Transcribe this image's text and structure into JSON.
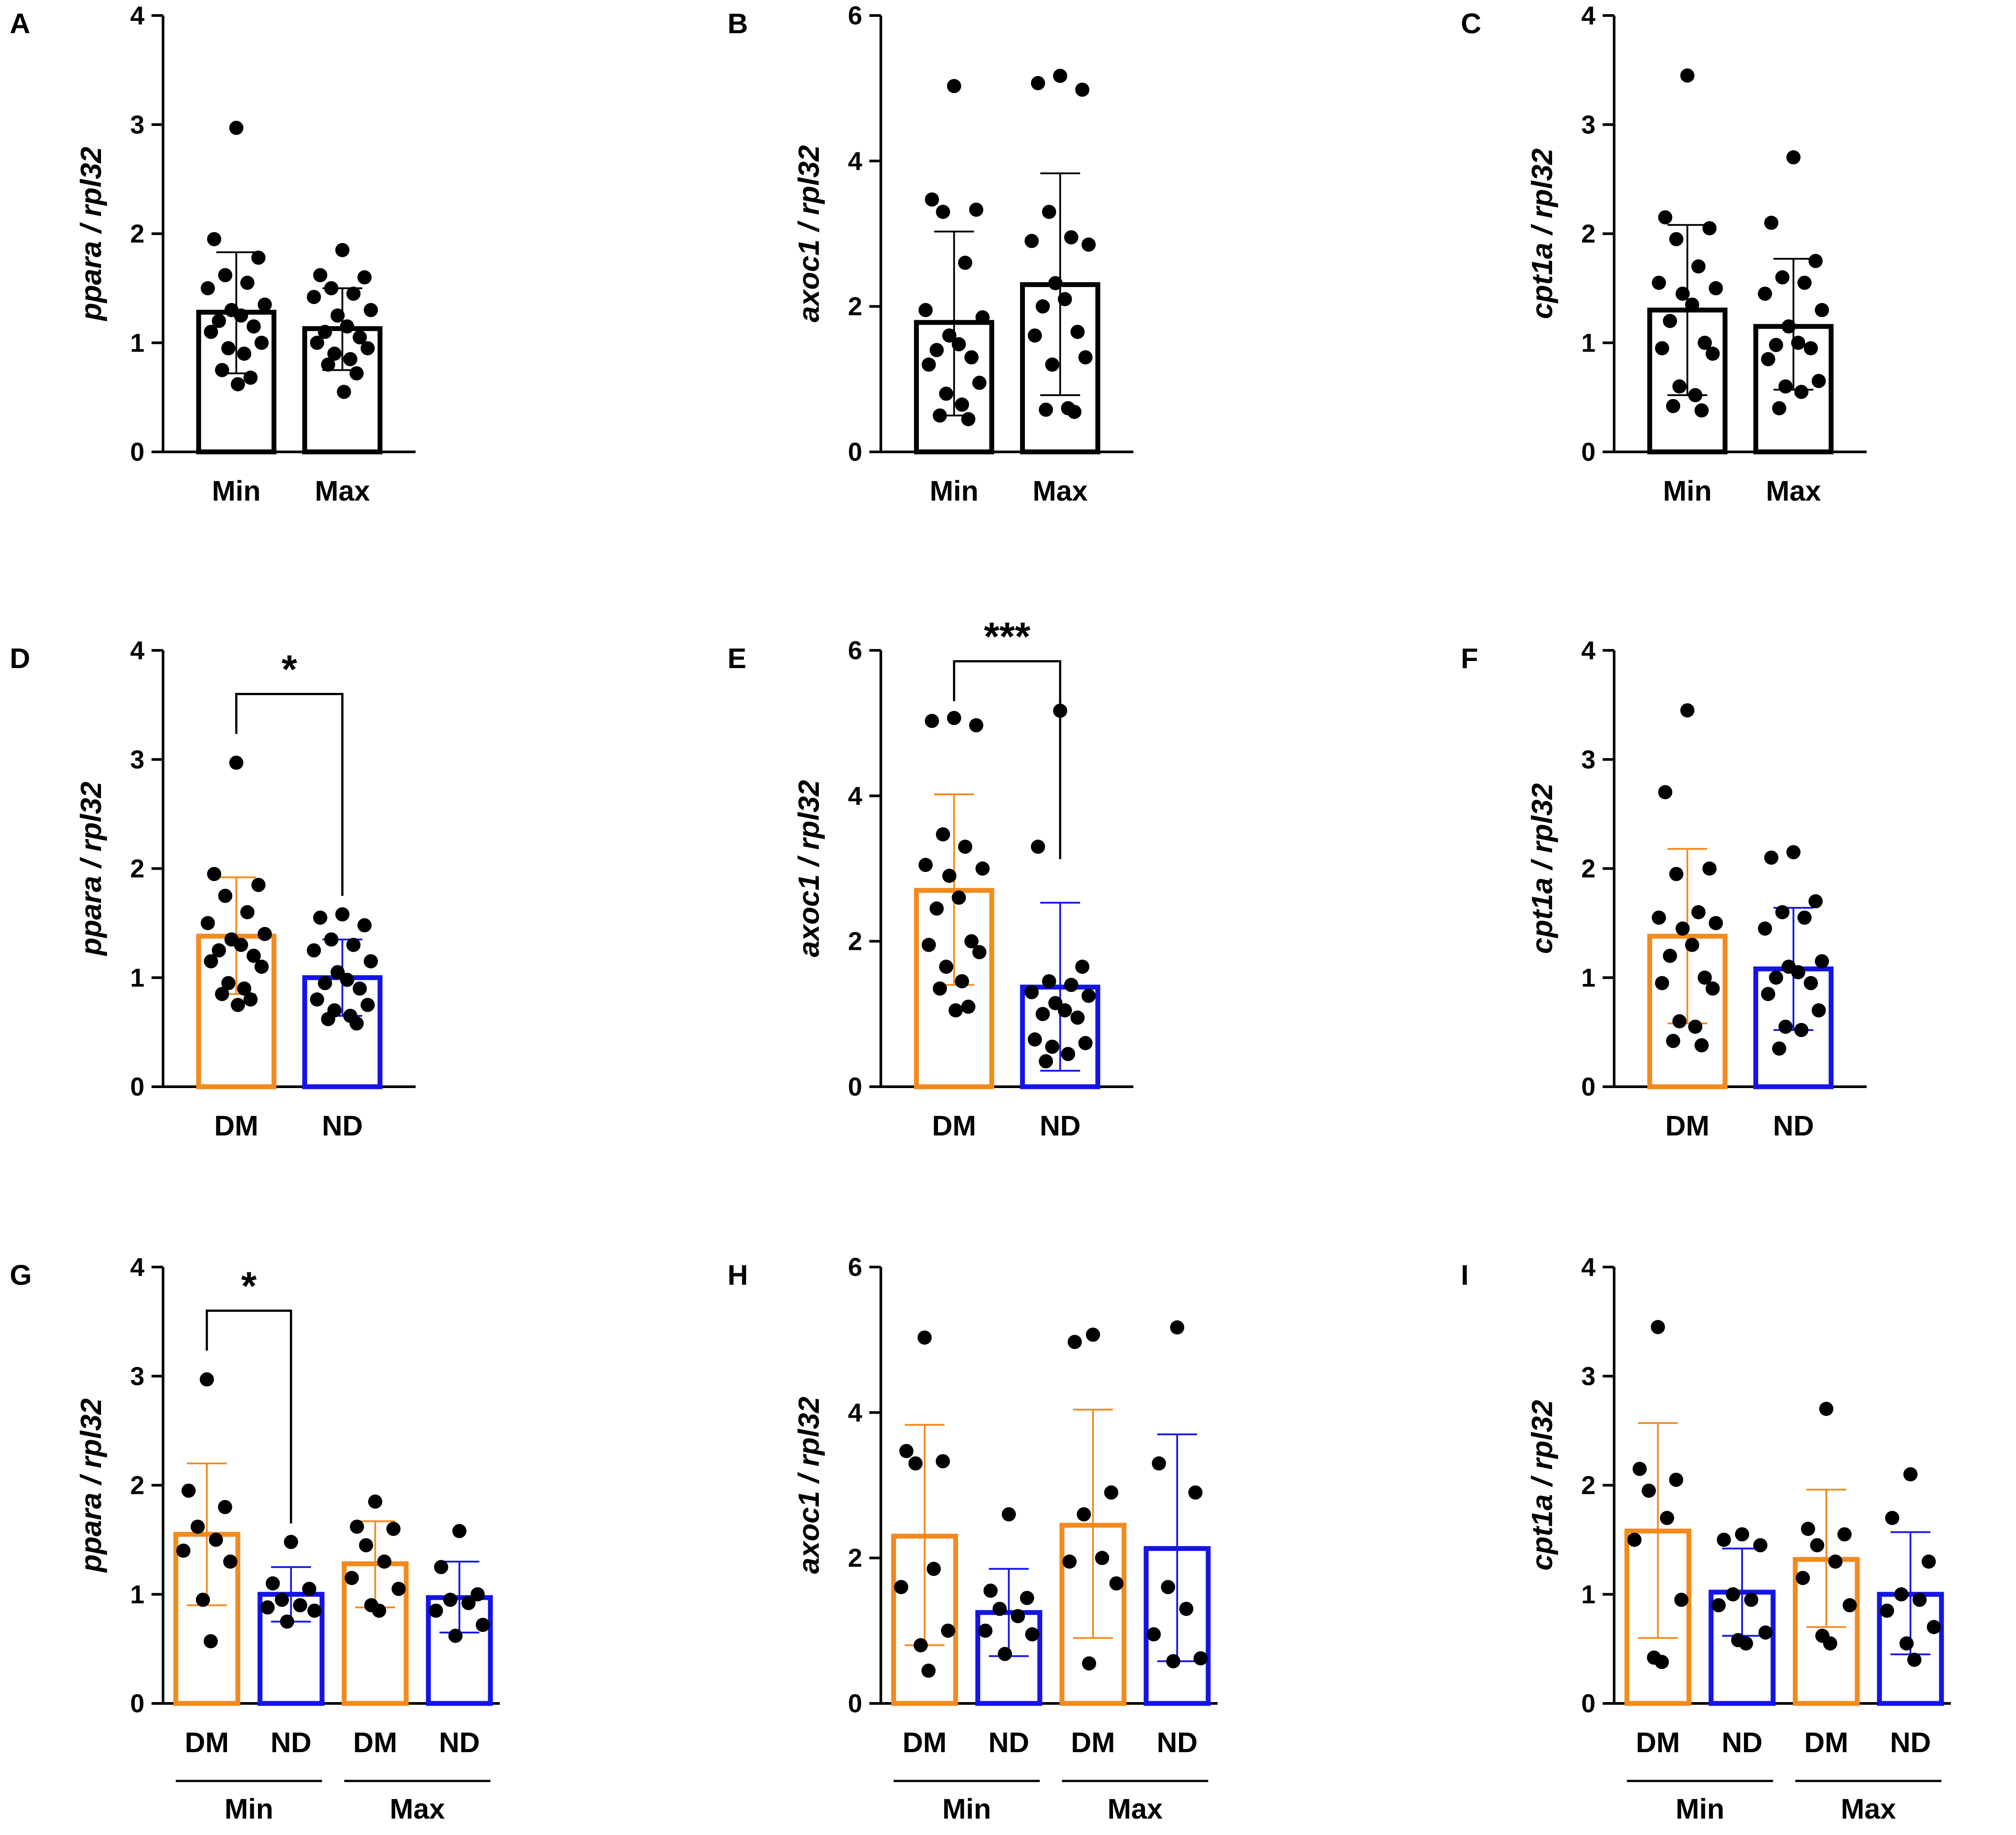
{
  "colors": {
    "DM": "#F28A1E",
    "ND": "#1414E6",
    "Min": "#000000",
    "Max": "#000000",
    "point": "#000000"
  },
  "chart_data": [
    {
      "panel": "A",
      "type": "bar",
      "ylabel": "ppara / rpl32",
      "yticks": [
        "0",
        "1",
        "2",
        "3",
        "4"
      ],
      "ylim": [
        0,
        4
      ],
      "step": 1,
      "categories": [
        "Min",
        "Max"
      ],
      "bars": [
        {
          "group": "Min",
          "mean": 1.28,
          "sd_low": 0.72,
          "sd_high": 1.83,
          "points": [
            2.97,
            1.95,
            1.78,
            1.62,
            1.55,
            1.5,
            1.35,
            1.3,
            1.25,
            1.2,
            1.15,
            1.1,
            1.0,
            0.95,
            0.9,
            0.75,
            0.68,
            0.62
          ]
        },
        {
          "group": "Max",
          "mean": 1.13,
          "sd_low": 0.75,
          "sd_high": 1.5,
          "points": [
            1.85,
            1.62,
            1.6,
            1.5,
            1.45,
            1.42,
            1.3,
            1.25,
            1.15,
            1.1,
            1.05,
            1.0,
            0.95,
            0.9,
            0.85,
            0.8,
            0.72,
            0.55
          ]
        }
      ],
      "significance": null
    },
    {
      "panel": "B",
      "type": "bar",
      "ylabel": "axoc1 / rpl32",
      "yticks": [
        "0",
        "2",
        "4",
        "6"
      ],
      "ylim": [
        0,
        6
      ],
      "step": 2,
      "categories": [
        "Min",
        "Max"
      ],
      "bars": [
        {
          "group": "Min",
          "mean": 1.78,
          "sd_low": 0.5,
          "sd_high": 3.03,
          "points": [
            5.03,
            3.47,
            3.33,
            3.3,
            2.6,
            1.95,
            1.85,
            1.6,
            1.48,
            1.4,
            1.3,
            1.2,
            0.95,
            0.8,
            0.65,
            0.5,
            0.45
          ]
        },
        {
          "group": "Max",
          "mean": 2.3,
          "sd_low": 0.78,
          "sd_high": 3.83,
          "points": [
            5.17,
            5.07,
            4.98,
            3.3,
            2.95,
            2.9,
            2.85,
            2.32,
            2.1,
            2.0,
            1.65,
            1.6,
            1.3,
            1.2,
            0.6,
            0.58,
            0.55
          ]
        }
      ],
      "significance": null
    },
    {
      "panel": "C",
      "type": "bar",
      "ylabel": "cpt1a / rpl32",
      "yticks": [
        "0",
        "1",
        "2",
        "3",
        "4"
      ],
      "ylim": [
        0,
        4
      ],
      "step": 1,
      "categories": [
        "Min",
        "Max"
      ],
      "bars": [
        {
          "group": "Min",
          "mean": 1.3,
          "sd_low": 0.52,
          "sd_high": 2.08,
          "points": [
            3.45,
            2.15,
            2.05,
            1.95,
            1.7,
            1.55,
            1.5,
            1.45,
            1.35,
            1.2,
            1.0,
            0.95,
            0.9,
            0.6,
            0.52,
            0.42,
            0.38
          ]
        },
        {
          "group": "Max",
          "mean": 1.15,
          "sd_low": 0.57,
          "sd_high": 1.77,
          "points": [
            2.7,
            2.1,
            1.75,
            1.6,
            1.55,
            1.45,
            1.3,
            1.15,
            1.0,
            0.98,
            0.95,
            0.85,
            0.65,
            0.6,
            0.55,
            0.4
          ]
        }
      ],
      "significance": null
    },
    {
      "panel": "D",
      "type": "bar",
      "ylabel": "ppara / rpl32",
      "yticks": [
        "0",
        "1",
        "2",
        "3",
        "4"
      ],
      "ylim": [
        0,
        4
      ],
      "step": 1,
      "categories": [
        "DM",
        "ND"
      ],
      "bars": [
        {
          "group": "DM",
          "mean": 1.38,
          "sd_low": 0.85,
          "sd_high": 1.92,
          "points": [
            2.97,
            1.95,
            1.85,
            1.75,
            1.6,
            1.5,
            1.4,
            1.35,
            1.3,
            1.25,
            1.2,
            1.15,
            1.1,
            0.95,
            0.9,
            0.85,
            0.8,
            0.75
          ]
        },
        {
          "group": "ND",
          "mean": 1.0,
          "sd_low": 0.65,
          "sd_high": 1.35,
          "points": [
            1.58,
            1.55,
            1.48,
            1.35,
            1.3,
            1.25,
            1.15,
            1.05,
            0.98,
            0.95,
            0.9,
            0.8,
            0.75,
            0.7,
            0.65,
            0.62,
            0.58
          ]
        }
      ],
      "significance": {
        "from": 0,
        "to": 1,
        "y": 3.6,
        "label": "*"
      }
    },
    {
      "panel": "E",
      "type": "bar",
      "ylabel": "axoc1 / rpl32",
      "yticks": [
        "0",
        "2",
        "4",
        "6"
      ],
      "ylim": [
        0,
        6
      ],
      "step": 2,
      "categories": [
        "DM",
        "ND"
      ],
      "bars": [
        {
          "group": "DM",
          "mean": 2.7,
          "sd_low": 1.4,
          "sd_high": 4.02,
          "points": [
            5.07,
            5.03,
            4.97,
            3.47,
            3.3,
            3.05,
            3.0,
            2.9,
            2.6,
            2.45,
            2.0,
            1.95,
            1.85,
            1.65,
            1.45,
            1.35,
            1.1,
            1.05
          ]
        },
        {
          "group": "ND",
          "mean": 1.37,
          "sd_low": 0.22,
          "sd_high": 2.53,
          "points": [
            5.17,
            3.3,
            1.65,
            1.45,
            1.4,
            1.3,
            1.25,
            1.15,
            1.05,
            1.0,
            0.95,
            0.65,
            0.6,
            0.55,
            0.45,
            0.35
          ]
        }
      ],
      "significance": {
        "from": 0,
        "to": 1,
        "y": 5.85,
        "label": "***"
      }
    },
    {
      "panel": "F",
      "type": "bar",
      "ylabel": "cpt1a / rpl32",
      "yticks": [
        "0",
        "1",
        "2",
        "3",
        "4"
      ],
      "ylim": [
        0,
        4
      ],
      "step": 1,
      "categories": [
        "DM",
        "ND"
      ],
      "bars": [
        {
          "group": "DM",
          "mean": 1.38,
          "sd_low": 0.58,
          "sd_high": 2.18,
          "points": [
            3.45,
            2.7,
            2.0,
            1.95,
            1.6,
            1.55,
            1.5,
            1.45,
            1.3,
            1.2,
            1.0,
            0.95,
            0.9,
            0.6,
            0.55,
            0.42,
            0.38
          ]
        },
        {
          "group": "ND",
          "mean": 1.08,
          "sd_low": 0.52,
          "sd_high": 1.64,
          "points": [
            2.15,
            2.1,
            1.7,
            1.6,
            1.55,
            1.45,
            1.15,
            1.1,
            1.05,
            1.0,
            0.95,
            0.85,
            0.7,
            0.55,
            0.52,
            0.35
          ]
        }
      ],
      "significance": null
    },
    {
      "panel": "G",
      "type": "bar",
      "ylabel": "ppara / rpl32",
      "yticks": [
        "0",
        "1",
        "2",
        "3",
        "4"
      ],
      "ylim": [
        0,
        4
      ],
      "step": 1,
      "categories": [
        "DM",
        "ND",
        "DM",
        "ND"
      ],
      "groups": [
        {
          "label": "Min",
          "start": 0,
          "end": 1
        },
        {
          "label": "Max",
          "start": 2,
          "end": 3
        }
      ],
      "bars": [
        {
          "group": "DM",
          "mean": 1.55,
          "sd_low": 0.9,
          "sd_high": 2.2,
          "points": [
            2.97,
            1.95,
            1.8,
            1.62,
            1.5,
            1.4,
            1.3,
            0.95,
            0.57
          ]
        },
        {
          "group": "ND",
          "mean": 1.0,
          "sd_low": 0.75,
          "sd_high": 1.25,
          "points": [
            1.48,
            1.1,
            1.05,
            0.95,
            0.9,
            0.88,
            0.85,
            0.75
          ]
        },
        {
          "group": "DM",
          "mean": 1.28,
          "sd_low": 0.88,
          "sd_high": 1.67,
          "points": [
            1.85,
            1.62,
            1.6,
            1.45,
            1.3,
            1.15,
            1.05,
            0.9,
            0.85
          ]
        },
        {
          "group": "ND",
          "mean": 0.97,
          "sd_low": 0.65,
          "sd_high": 1.3,
          "points": [
            1.58,
            1.25,
            1.0,
            0.95,
            0.92,
            0.85,
            0.72,
            0.62
          ]
        }
      ],
      "significance": {
        "from": 0,
        "to": 1,
        "y": 3.6,
        "label": "*"
      }
    },
    {
      "panel": "H",
      "type": "bar",
      "ylabel": "axoc1 / rpl32",
      "yticks": [
        "0",
        "2",
        "4",
        "6"
      ],
      "ylim": [
        0,
        6
      ],
      "step": 2,
      "categories": [
        "DM",
        "ND",
        "DM",
        "ND"
      ],
      "groups": [
        {
          "label": "Min",
          "start": 0,
          "end": 1
        },
        {
          "label": "Max",
          "start": 2,
          "end": 3
        }
      ],
      "bars": [
        {
          "group": "DM",
          "mean": 2.3,
          "sd_low": 0.8,
          "sd_high": 3.83,
          "points": [
            5.03,
            3.47,
            3.33,
            3.3,
            1.85,
            1.6,
            1.0,
            0.8,
            0.45
          ]
        },
        {
          "group": "ND",
          "mean": 1.25,
          "sd_low": 0.65,
          "sd_high": 1.85,
          "points": [
            2.6,
            1.55,
            1.45,
            1.3,
            1.2,
            1.0,
            0.95,
            0.68
          ]
        },
        {
          "group": "DM",
          "mean": 2.45,
          "sd_low": 0.9,
          "sd_high": 4.04,
          "points": [
            5.07,
            4.97,
            2.9,
            2.6,
            2.0,
            1.95,
            1.65,
            0.55
          ]
        },
        {
          "group": "ND",
          "mean": 2.13,
          "sd_low": 0.58,
          "sd_high": 3.7,
          "points": [
            5.17,
            3.3,
            2.9,
            1.6,
            1.3,
            0.95,
            0.62,
            0.58
          ]
        }
      ],
      "significance": null
    },
    {
      "panel": "I",
      "type": "bar",
      "ylabel": "cpt1a / rpl32",
      "yticks": [
        "0",
        "1",
        "2",
        "3",
        "4"
      ],
      "ylim": [
        0,
        4
      ],
      "step": 1,
      "categories": [
        "DM",
        "ND",
        "DM",
        "ND"
      ],
      "groups": [
        {
          "label": "Min",
          "start": 0,
          "end": 1
        },
        {
          "label": "Max",
          "start": 2,
          "end": 3
        }
      ],
      "bars": [
        {
          "group": "DM",
          "mean": 1.58,
          "sd_low": 0.6,
          "sd_high": 2.57,
          "points": [
            3.45,
            2.15,
            2.05,
            1.95,
            1.7,
            1.5,
            0.95,
            0.42,
            0.38
          ]
        },
        {
          "group": "ND",
          "mean": 1.02,
          "sd_low": 0.62,
          "sd_high": 1.42,
          "points": [
            1.55,
            1.5,
            1.45,
            1.0,
            0.95,
            0.9,
            0.65,
            0.58,
            0.55
          ]
        },
        {
          "group": "DM",
          "mean": 1.32,
          "sd_low": 0.7,
          "sd_high": 1.96,
          "points": [
            2.7,
            1.6,
            1.55,
            1.45,
            1.3,
            1.15,
            0.9,
            0.62,
            0.55
          ]
        },
        {
          "group": "ND",
          "mean": 1.0,
          "sd_low": 0.45,
          "sd_high": 1.57,
          "points": [
            2.1,
            1.7,
            1.3,
            1.0,
            0.95,
            0.85,
            0.7,
            0.55,
            0.4
          ]
        }
      ],
      "significance": null
    }
  ]
}
